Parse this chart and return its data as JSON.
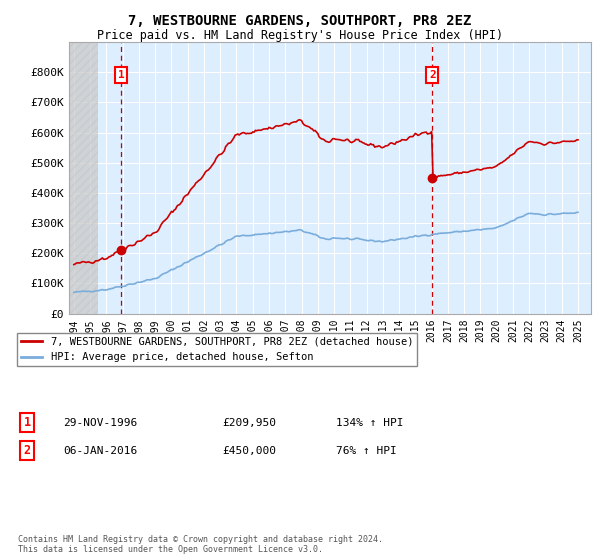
{
  "title": "7, WESTBOURNE GARDENS, SOUTHPORT, PR8 2EZ",
  "subtitle": "Price paid vs. HM Land Registry's House Price Index (HPI)",
  "legend_line1": "7, WESTBOURNE GARDENS, SOUTHPORT, PR8 2EZ (detached house)",
  "legend_line2": "HPI: Average price, detached house, Sefton",
  "annotation1_label": "1",
  "annotation1_date": "29-NOV-1996",
  "annotation1_price": 209950,
  "annotation1_hpi": "134% ↑ HPI",
  "annotation2_label": "2",
  "annotation2_date": "06-JAN-2016",
  "annotation2_price": 450000,
  "annotation2_hpi": "76% ↑ HPI",
  "footer": "Contains HM Land Registry data © Crown copyright and database right 2024.\nThis data is licensed under the Open Government Licence v3.0.",
  "property_color": "#cc0000",
  "hpi_color": "#7aaddb",
  "plot_bg_color": "#ddeeff",
  "ylim": [
    0,
    850000
  ],
  "yticks": [
    0,
    100000,
    200000,
    300000,
    400000,
    500000,
    600000,
    700000,
    800000
  ],
  "ytick_labels": [
    "£0",
    "£100K",
    "£200K",
    "£300K",
    "£400K",
    "£500K",
    "£600K",
    "£700K",
    "£800K"
  ],
  "sale1_year": 1996.917,
  "sale1_price": 209950,
  "sale2_year": 2016.042,
  "sale2_price": 450000
}
